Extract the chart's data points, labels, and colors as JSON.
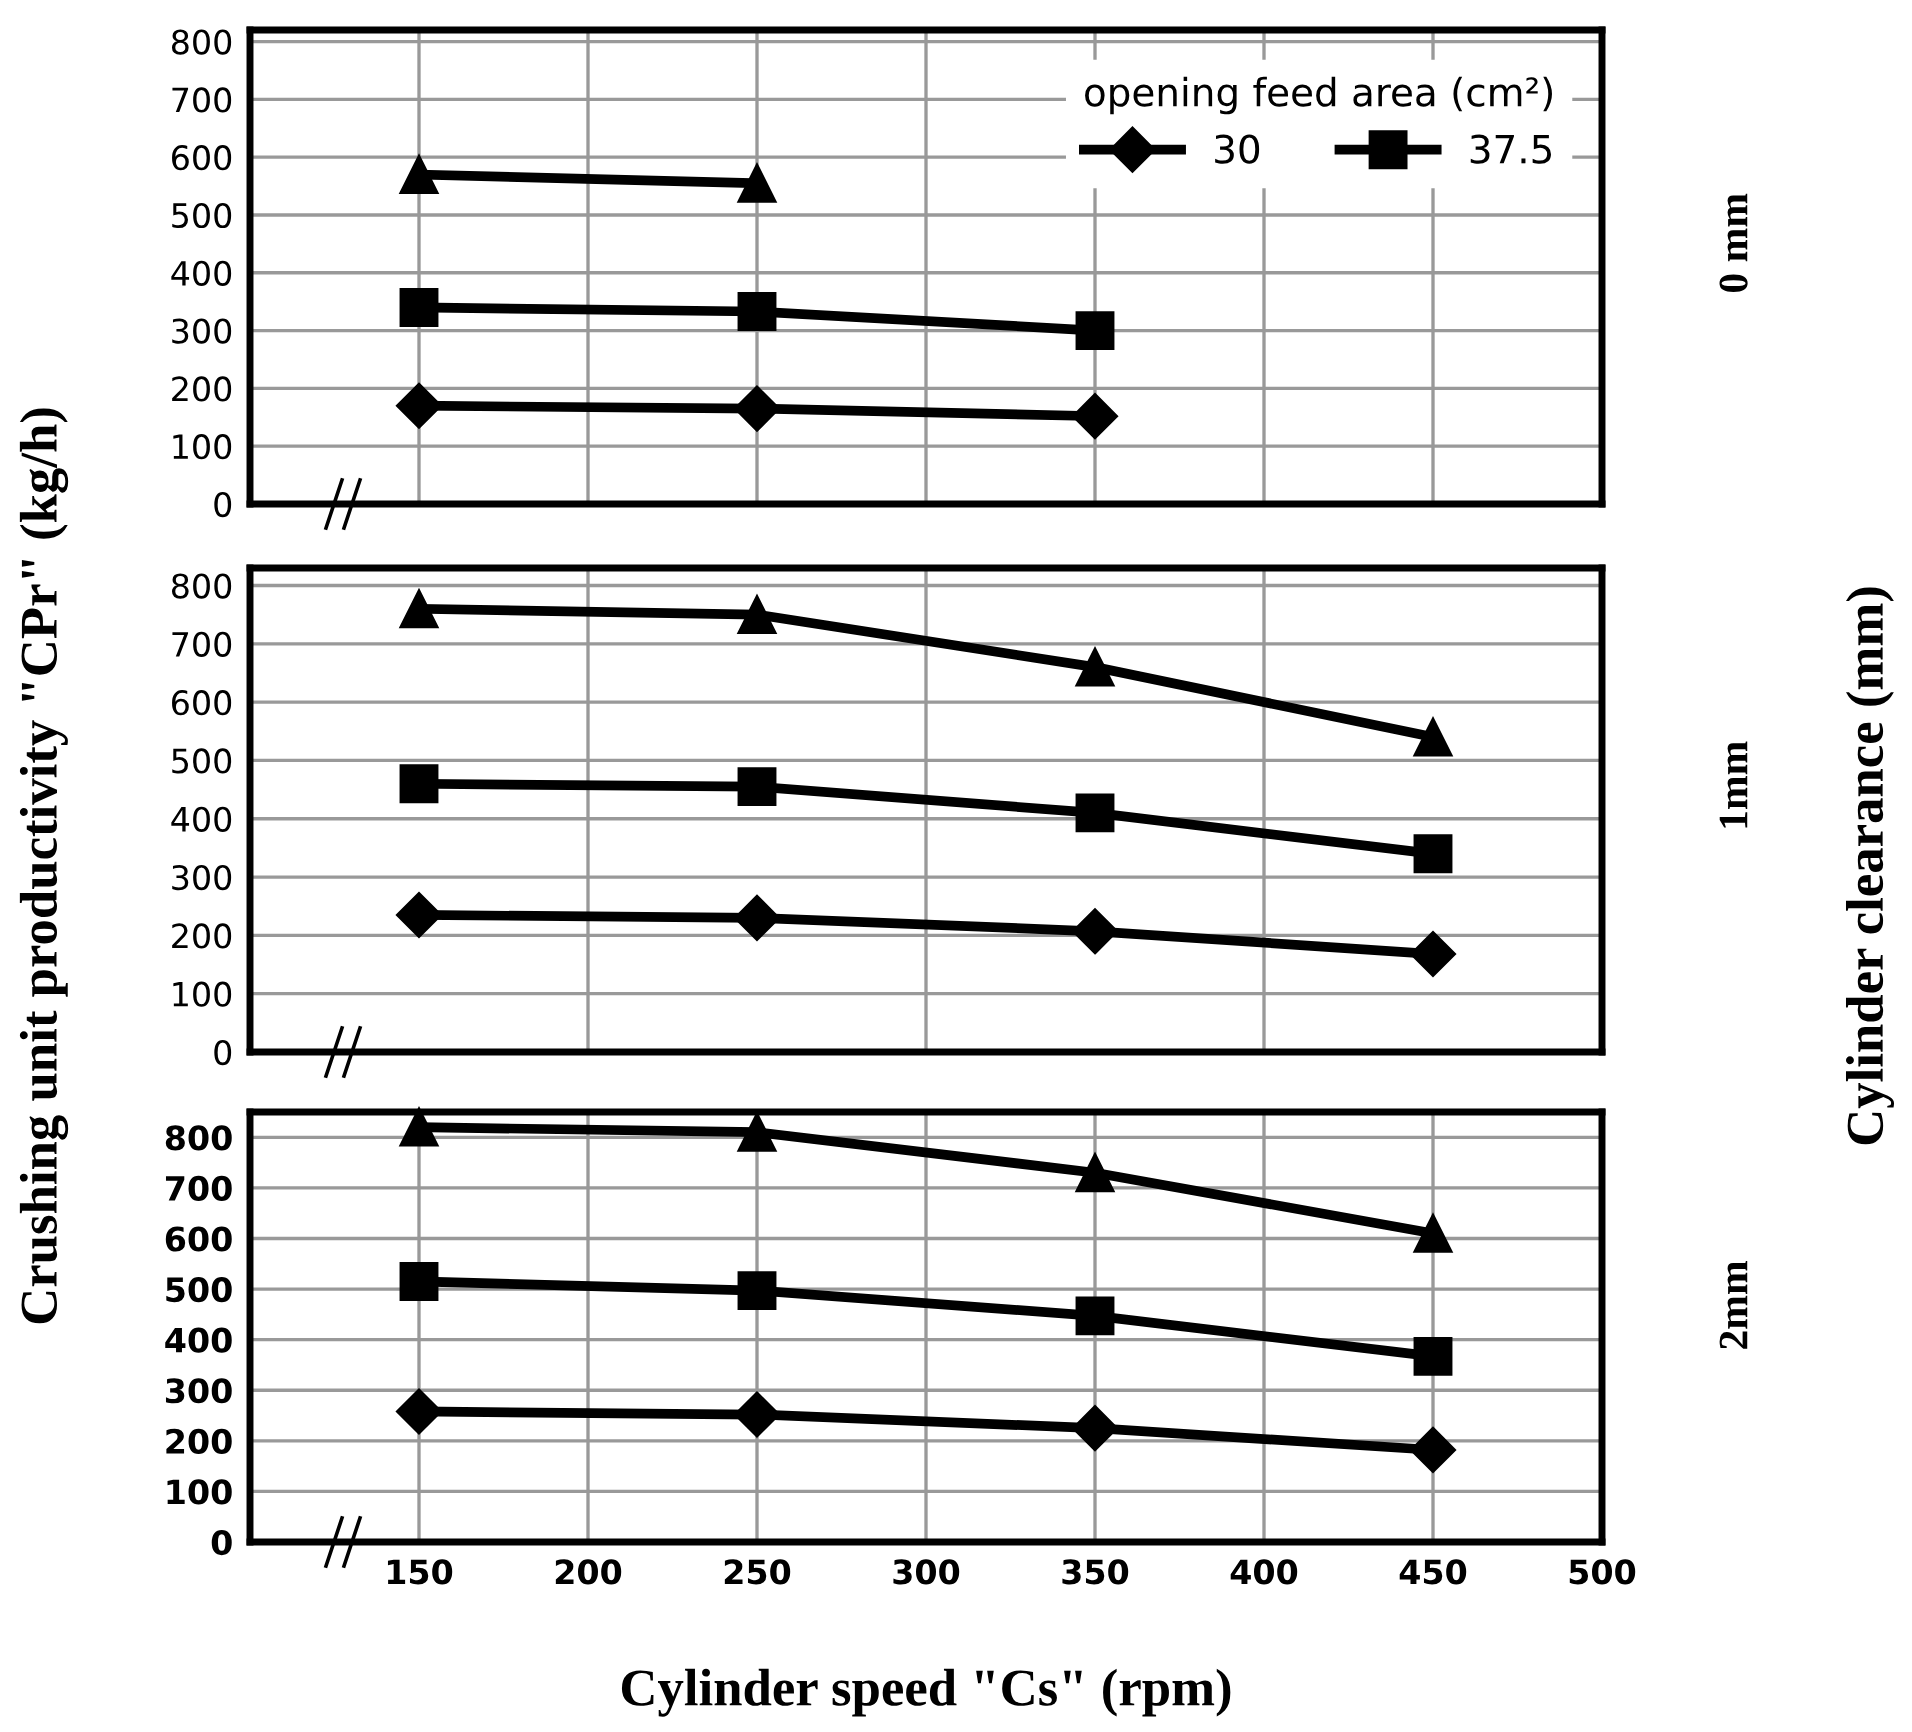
{
  "chart_data": [
    {
      "type": "line",
      "x": [
        150,
        250,
        350
      ],
      "xlim": [
        100,
        500
      ],
      "xticks": [
        {
          "value": 150,
          "label": null
        },
        {
          "value": 200,
          "label": null
        },
        {
          "value": 250,
          "label": null
        },
        {
          "value": 300,
          "label": null
        },
        {
          "value": 350,
          "label": null
        },
        {
          "value": 400,
          "label": null
        },
        {
          "value": 450,
          "label": null
        }
      ],
      "ylim": [
        0,
        820
      ],
      "yticks": [
        0,
        100,
        200,
        300,
        400,
        500,
        600,
        700,
        800
      ],
      "tick_labels": "y",
      "grid": true,
      "legend": "top right",
      "legend_title": "opening feed area (cm²)",
      "line_style": "solid",
      "annotations": [
        "0 mm"
      ],
      "series": [
        {
          "name": "30",
          "color": "#000000",
          "marker": "diamond",
          "values": [
            170,
            165,
            152
          ]
        },
        {
          "name": "37.5",
          "color": "#000000",
          "marker": "square",
          "values": [
            340,
            333,
            300
          ]
        },
        {
          "color": "#000000",
          "marker": "triangle",
          "values": [
            570,
            555,
            null
          ]
        }
      ]
    },
    {
      "type": "line",
      "x": [
        150,
        250,
        350,
        450
      ],
      "xlim": [
        100,
        500
      ],
      "xticks": [
        {
          "value": 200,
          "label": null
        },
        {
          "value": 300,
          "label": null
        },
        {
          "value": 400,
          "label": null
        }
      ],
      "ylim": [
        0,
        830
      ],
      "yticks": [
        0,
        100,
        200,
        300,
        400,
        500,
        600,
        700,
        800
      ],
      "tick_labels": "y",
      "grid": true,
      "line_style": "solid",
      "ylabel": "Crushing unit productivity \"CPr\" (kg/h)",
      "y2label": "Cylinder clearance (mm)",
      "annotations": [
        "1mm"
      ],
      "series": [
        {
          "color": "#000000",
          "marker": "diamond",
          "values": [
            235,
            230,
            207,
            168
          ]
        },
        {
          "color": "#000000",
          "marker": "square",
          "values": [
            460,
            455,
            410,
            340
          ]
        },
        {
          "color": "#000000",
          "marker": "triangle",
          "values": [
            760,
            750,
            660,
            540
          ]
        }
      ]
    },
    {
      "type": "line",
      "x": [
        150,
        250,
        350,
        450
      ],
      "xlim": [
        100,
        500
      ],
      "xticks": [
        150,
        200,
        250,
        300,
        350,
        400,
        450,
        500
      ],
      "ylim": [
        0,
        850
      ],
      "yticks": [
        0,
        100,
        200,
        300,
        400,
        500,
        600,
        700,
        800
      ],
      "grid": true,
      "line_style": "solid",
      "xlabel": "Cylinder speed \"Cs\" (rpm)",
      "annotations": [
        "2mm"
      ],
      "series": [
        {
          "color": "#000000",
          "marker": "diamond",
          "values": [
            258,
            252,
            225,
            182
          ]
        },
        {
          "color": "#000000",
          "marker": "square",
          "values": [
            515,
            497,
            447,
            367
          ]
        },
        {
          "color": "#000000",
          "marker": "triangle",
          "values": [
            820,
            810,
            730,
            610
          ]
        }
      ]
    }
  ]
}
